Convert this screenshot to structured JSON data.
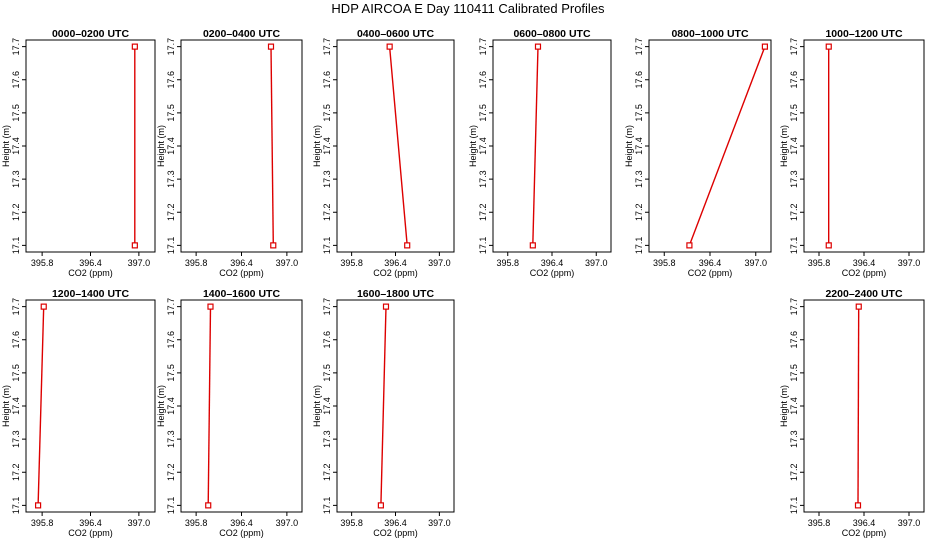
{
  "title": "HDP AIRCOA E  Day 110411  Calibrated Profiles",
  "colors": {
    "series": "#dd0000",
    "axis": "#000000",
    "background": "#ffffff"
  },
  "chart_data": [
    {
      "type": "line",
      "title": "0000–0200 UTC",
      "xlabel": "CO2 (ppm)",
      "ylabel": "Height (m)",
      "xlim": [
        395.6,
        397.2
      ],
      "ylim": [
        17.08,
        17.72
      ],
      "xticks": [
        "395.8",
        "396.4",
        "397.0"
      ],
      "yticks": [
        "17.1",
        "17.2",
        "17.3",
        "17.4",
        "17.5",
        "17.6",
        "17.7"
      ],
      "x": [
        396.95,
        396.95
      ],
      "y": [
        17.1,
        17.7
      ]
    },
    {
      "type": "line",
      "title": "0200–0400 UTC",
      "xlabel": "CO2 (ppm)",
      "ylabel": "Height (m)",
      "xlim": [
        395.6,
        397.2
      ],
      "ylim": [
        17.08,
        17.72
      ],
      "xticks": [
        "395.8",
        "396.4",
        "397.0"
      ],
      "yticks": [
        "17.1",
        "17.2",
        "17.3",
        "17.4",
        "17.5",
        "17.6",
        "17.7"
      ],
      "x": [
        396.82,
        396.79
      ],
      "y": [
        17.1,
        17.7
      ]
    },
    {
      "type": "line",
      "title": "0400–0600 UTC",
      "xlabel": "CO2 (ppm)",
      "ylabel": "Height (m)",
      "xlim": [
        395.6,
        397.2
      ],
      "ylim": [
        17.08,
        17.72
      ],
      "xticks": [
        "395.8",
        "396.4",
        "397.0"
      ],
      "yticks": [
        "17.1",
        "17.2",
        "17.3",
        "17.4",
        "17.5",
        "17.6",
        "17.7"
      ],
      "x": [
        396.56,
        396.32
      ],
      "y": [
        17.1,
        17.7
      ]
    },
    {
      "type": "line",
      "title": "0600–0800 UTC",
      "xlabel": "CO2 (ppm)",
      "ylabel": "Height (m)",
      "xlim": [
        395.6,
        397.2
      ],
      "ylim": [
        17.08,
        17.72
      ],
      "xticks": [
        "395.8",
        "396.4",
        "397.0"
      ],
      "yticks": [
        "17.1",
        "17.2",
        "17.3",
        "17.4",
        "17.5",
        "17.6",
        "17.7"
      ],
      "x": [
        396.14,
        396.21
      ],
      "y": [
        17.1,
        17.7
      ]
    },
    {
      "type": "line",
      "title": "0800–1000 UTC",
      "xlabel": "CO2 (ppm)",
      "ylabel": "Height (m)",
      "xlim": [
        395.6,
        397.2
      ],
      "ylim": [
        17.08,
        17.72
      ],
      "xticks": [
        "395.8",
        "396.4",
        "397.0"
      ],
      "yticks": [
        "17.1",
        "17.2",
        "17.3",
        "17.4",
        "17.5",
        "17.6",
        "17.7"
      ],
      "x": [
        396.13,
        397.12
      ],
      "y": [
        17.1,
        17.7
      ]
    },
    {
      "type": "line",
      "title": "1000–1200 UTC",
      "xlabel": "CO2 (ppm)",
      "ylabel": "Height (m)",
      "xlim": [
        395.6,
        397.2
      ],
      "ylim": [
        17.08,
        17.72
      ],
      "xticks": [
        "395.8",
        "396.4",
        "397.0"
      ],
      "yticks": [
        "17.1",
        "17.2",
        "17.3",
        "17.4",
        "17.5",
        "17.6",
        "17.7"
      ],
      "x": [
        395.93,
        395.93
      ],
      "y": [
        17.1,
        17.7
      ]
    },
    {
      "type": "line",
      "title": "1200–1400 UTC",
      "xlabel": "CO2 (ppm)",
      "ylabel": "Height (m)",
      "xlim": [
        395.6,
        397.2
      ],
      "ylim": [
        17.08,
        17.72
      ],
      "xticks": [
        "395.8",
        "396.4",
        "397.0"
      ],
      "yticks": [
        "17.1",
        "17.2",
        "17.3",
        "17.4",
        "17.5",
        "17.6",
        "17.7"
      ],
      "x": [
        395.75,
        395.82
      ],
      "y": [
        17.1,
        17.7
      ]
    },
    {
      "type": "line",
      "title": "1400–1600 UTC",
      "xlabel": "CO2 (ppm)",
      "ylabel": "Height (m)",
      "xlim": [
        395.6,
        397.2
      ],
      "ylim": [
        17.08,
        17.72
      ],
      "xticks": [
        "395.8",
        "396.4",
        "397.0"
      ],
      "yticks": [
        "17.1",
        "17.2",
        "17.3",
        "17.4",
        "17.5",
        "17.6",
        "17.7"
      ],
      "x": [
        395.96,
        395.99
      ],
      "y": [
        17.1,
        17.7
      ]
    },
    {
      "type": "line",
      "title": "1600–1800 UTC",
      "xlabel": "CO2 (ppm)",
      "ylabel": "Height (m)",
      "xlim": [
        395.6,
        397.2
      ],
      "ylim": [
        17.08,
        17.72
      ],
      "xticks": [
        "395.8",
        "396.4",
        "397.0"
      ],
      "yticks": [
        "17.1",
        "17.2",
        "17.3",
        "17.4",
        "17.5",
        "17.6",
        "17.7"
      ],
      "x": [
        396.2,
        396.27
      ],
      "y": [
        17.1,
        17.7
      ]
    },
    {
      "type": "line",
      "title": "2200–2400 UTC",
      "xlabel": "CO2 (ppm)",
      "ylabel": "Height (m)",
      "xlim": [
        395.6,
        397.2
      ],
      "ylim": [
        17.08,
        17.72
      ],
      "xticks": [
        "395.8",
        "396.4",
        "397.0"
      ],
      "yticks": [
        "17.1",
        "17.2",
        "17.3",
        "17.4",
        "17.5",
        "17.6",
        "17.7"
      ],
      "x": [
        396.32,
        396.33
      ],
      "y": [
        17.1,
        17.7
      ]
    }
  ]
}
